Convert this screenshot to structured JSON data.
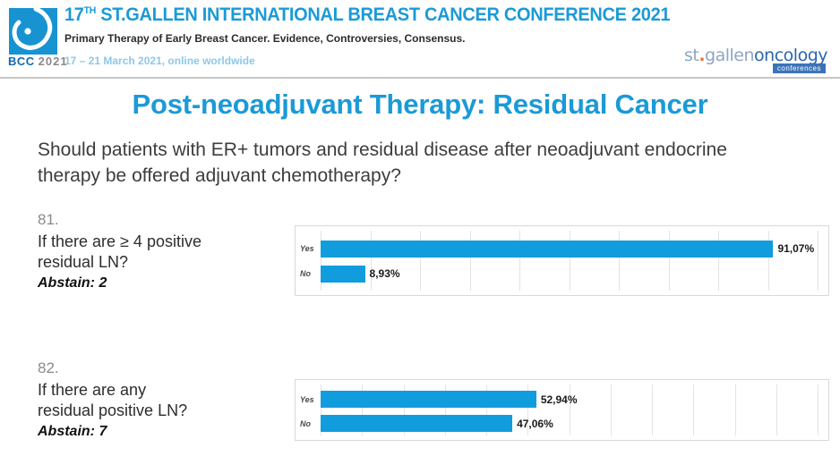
{
  "colors": {
    "accent_blue": "#1b9ad7",
    "bar_blue": "#119cdd",
    "logo_blue": "#1793d2",
    "brand_light_blue": "#8fa6c6",
    "brand_dark_blue": "#2b66ad",
    "brand_orange_dot": "#e2793b",
    "date_light_blue": "#8cc8ea"
  },
  "header": {
    "logo": {
      "bcc": "BCC",
      "year": "2021"
    },
    "title_prefix": "17",
    "title_sup": "TH",
    "title_rest": "ST.GALLEN INTERNATIONAL BREAST CANCER CONFERENCE 2021",
    "subtitle": "Primary Therapy of Early Breast Cancer. Evidence, Controversies, Consensus.",
    "date_line": "17 – 21 March 2021, online worldwide",
    "brand": {
      "st": "st",
      "dot": ".",
      "gallen": "gallen",
      "oncology": "oncology",
      "badge": "conferences"
    }
  },
  "slide": {
    "title": "Post-neoadjuvant Therapy: Residual Cancer",
    "question": "Should patients with ER+ tumors and residual disease after neoadjuvant endocrine therapy be offered adjuvant chemotherapy?"
  },
  "polls": [
    {
      "number": "81.",
      "lines": [
        "If there are ≥ 4 positive",
        "residual LN?"
      ],
      "abstain": "Abstain: 2"
    },
    {
      "number": "82.",
      "lines": [
        "If there are any",
        "residual positive LN?"
      ],
      "abstain": "Abstain: 7"
    }
  ],
  "chart_data": [
    {
      "type": "bar",
      "orientation": "horizontal",
      "title": "81. If there are ≥ 4 positive residual LN? (Abstain: 2)",
      "categories": [
        "Yes",
        "No"
      ],
      "values": [
        91.07,
        8.93
      ],
      "value_labels": [
        "91,07%",
        "8,93%"
      ],
      "xlabel": "",
      "ylabel": "",
      "xlim": [
        0,
        100
      ],
      "gridline_count": 11,
      "grid": true,
      "legend": false,
      "bar_color": "#119cdd"
    },
    {
      "type": "bar",
      "orientation": "horizontal",
      "title": "82. If there are any residual positive LN? (Abstain: 7)",
      "categories": [
        "Yes",
        "No"
      ],
      "values": [
        52.94,
        47.06
      ],
      "value_labels": [
        "52,94%",
        "47,06%"
      ],
      "xlabel": "",
      "ylabel": "",
      "xlim": [
        0,
        122
      ],
      "gridline_count": 13,
      "grid": true,
      "legend": false,
      "bar_color": "#119cdd"
    }
  ]
}
